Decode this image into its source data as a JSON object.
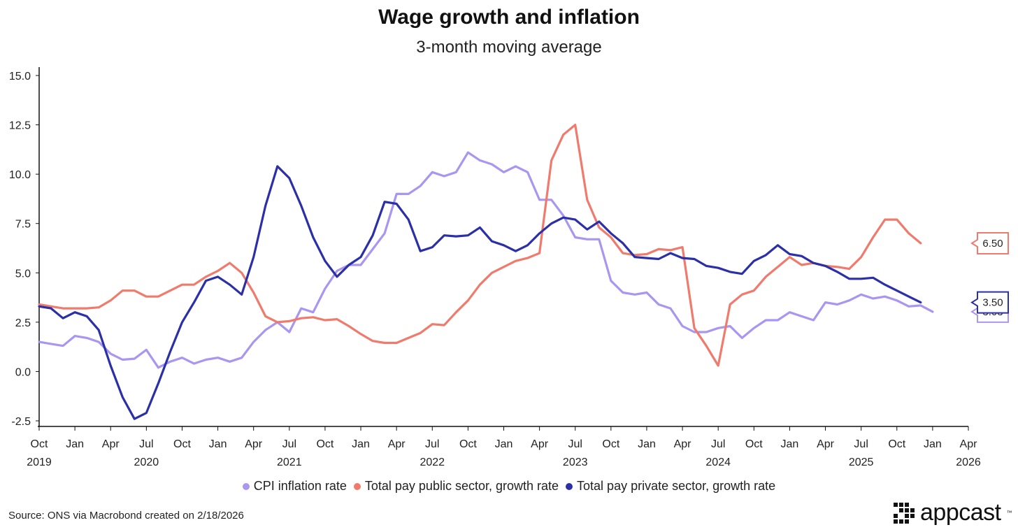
{
  "chart_data": {
    "type": "line",
    "title": "Wage growth and inflation",
    "subtitle": "3-month moving average",
    "yticks": [
      "15.0",
      "12.5",
      "10.0",
      "7.5",
      "5.0",
      "2.5",
      "0.0",
      "-2.5"
    ],
    "ylim": [
      -2.5,
      15.0
    ],
    "x_start": "2019-10",
    "x_end": "2026-04",
    "xtick_labels": [
      {
        "m": "Oct",
        "y": "2019"
      },
      {
        "m": "Jan",
        "y": ""
      },
      {
        "m": "Apr",
        "y": ""
      },
      {
        "m": "Jul",
        "y": "2020"
      },
      {
        "m": "Oct",
        "y": ""
      },
      {
        "m": "Jan",
        "y": ""
      },
      {
        "m": "Apr",
        "y": ""
      },
      {
        "m": "Jul",
        "y": "2021"
      },
      {
        "m": "Oct",
        "y": ""
      },
      {
        "m": "Jan",
        "y": ""
      },
      {
        "m": "Apr",
        "y": ""
      },
      {
        "m": "Jul",
        "y": "2022"
      },
      {
        "m": "Oct",
        "y": ""
      },
      {
        "m": "Jan",
        "y": ""
      },
      {
        "m": "Apr",
        "y": ""
      },
      {
        "m": "Jul",
        "y": "2023"
      },
      {
        "m": "Oct",
        "y": ""
      },
      {
        "m": "Jan",
        "y": ""
      },
      {
        "m": "Apr",
        "y": ""
      },
      {
        "m": "Jul",
        "y": "2024"
      },
      {
        "m": "Oct",
        "y": ""
      },
      {
        "m": "Jan",
        "y": ""
      },
      {
        "m": "Apr",
        "y": ""
      },
      {
        "m": "Jul",
        "y": "2025"
      },
      {
        "m": "Oct",
        "y": ""
      },
      {
        "m": "Jan",
        "y": ""
      },
      {
        "m": "Apr",
        "y": "2026"
      }
    ],
    "grid": false,
    "legend_position": "bottom",
    "series": [
      {
        "name": "CPI inflation rate",
        "color": "#a996f0",
        "end_label": "3.03",
        "values": [
          1.5,
          1.4,
          1.3,
          1.8,
          1.7,
          1.5,
          0.9,
          0.6,
          0.65,
          1.1,
          0.2,
          0.5,
          0.7,
          0.4,
          0.6,
          0.7,
          0.5,
          0.7,
          1.5,
          2.1,
          2.5,
          2.0,
          3.2,
          3.0,
          4.2,
          5.1,
          5.4,
          5.4,
          6.2,
          7.0,
          9.0,
          9.0,
          9.4,
          10.1,
          9.9,
          10.1,
          11.1,
          10.7,
          10.5,
          10.1,
          10.4,
          10.1,
          8.7,
          8.7,
          7.9,
          6.8,
          6.7,
          6.7,
          4.6,
          4.0,
          3.9,
          4.0,
          3.4,
          3.2,
          2.3,
          2.0,
          2.0,
          2.2,
          2.3,
          1.7,
          2.2,
          2.6,
          2.6,
          3.0,
          2.8,
          2.6,
          3.5,
          3.4,
          3.6,
          3.9,
          3.7,
          3.8,
          3.6,
          3.3,
          3.35,
          3.03
        ]
      },
      {
        "name": "Total pay public sector, growth rate",
        "color": "#f07a6c",
        "end_label": "6.50",
        "values": [
          3.4,
          3.3,
          3.2,
          3.2,
          3.2,
          3.25,
          3.6,
          4.1,
          4.1,
          3.8,
          3.8,
          4.1,
          4.4,
          4.4,
          4.8,
          5.1,
          5.5,
          5.0,
          4.0,
          2.8,
          2.5,
          2.55,
          2.7,
          2.75,
          2.6,
          2.65,
          2.3,
          1.9,
          1.55,
          1.45,
          1.45,
          1.7,
          1.95,
          2.4,
          2.35,
          3.0,
          3.6,
          4.4,
          5.0,
          5.3,
          5.6,
          5.75,
          6.0,
          10.7,
          12.0,
          12.5,
          8.7,
          7.3,
          6.8,
          6.0,
          5.9,
          5.95,
          6.2,
          6.15,
          6.3,
          2.2,
          1.3,
          0.3,
          3.4,
          3.9,
          4.1,
          4.8,
          5.3,
          5.8,
          5.4,
          5.5,
          5.35,
          5.3,
          5.2,
          5.8,
          6.8,
          7.7,
          7.7,
          7.0,
          6.5
        ]
      },
      {
        "name": "Total pay private sector, growth rate",
        "color": "#2b2fa8",
        "end_label": "3.50",
        "values": [
          3.3,
          3.2,
          2.7,
          3.0,
          2.8,
          2.1,
          0.3,
          -1.3,
          -2.4,
          -2.1,
          -0.6,
          1.0,
          2.5,
          3.5,
          4.6,
          4.8,
          4.4,
          3.9,
          5.8,
          8.4,
          10.4,
          9.8,
          8.4,
          6.8,
          5.6,
          4.8,
          5.4,
          5.8,
          6.9,
          8.6,
          8.5,
          7.7,
          6.1,
          6.3,
          6.9,
          6.85,
          6.9,
          7.3,
          6.6,
          6.4,
          6.1,
          6.4,
          7.0,
          7.5,
          7.8,
          7.7,
          7.2,
          7.6,
          7.0,
          6.5,
          5.8,
          5.75,
          5.7,
          6.0,
          5.75,
          5.7,
          5.35,
          5.25,
          5.05,
          4.95,
          5.6,
          5.9,
          6.4,
          5.95,
          5.85,
          5.5,
          5.35,
          5.05,
          4.7,
          4.7,
          4.75,
          4.4,
          4.1,
          3.8,
          3.5
        ]
      }
    ]
  },
  "source": "Source: ONS via Macrobond created on 2/18/2026",
  "brand": {
    "name": "appcast",
    "icon": "dotted-grid-logo-icon"
  }
}
